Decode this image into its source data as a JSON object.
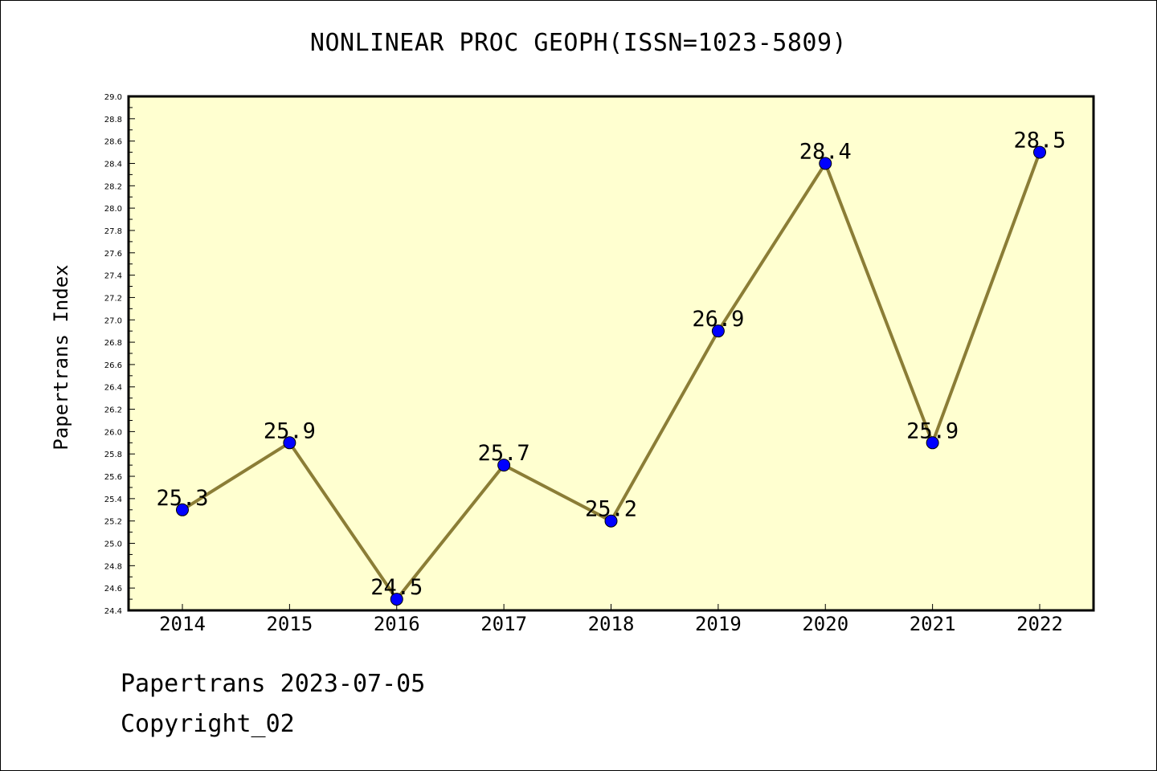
{
  "chart_data": {
    "type": "line",
    "title": "NONLINEAR PROC GEOPH(ISSN=1023-5809)",
    "xlabel": "",
    "ylabel": "Papertrans Index",
    "categories": [
      "2014",
      "2015",
      "2016",
      "2017",
      "2018",
      "2019",
      "2020",
      "2021",
      "2022"
    ],
    "series": [
      {
        "values": [
          25.3,
          25.9,
          24.5,
          25.7,
          25.2,
          26.9,
          28.4,
          25.9,
          28.5
        ]
      }
    ],
    "data_labels": [
      "25.3",
      "25.9",
      "24.5",
      "25.7",
      "25.2",
      "26.9",
      "28.4",
      "25.9",
      "28.5"
    ],
    "ylim": [
      24.4,
      29.0
    ],
    "y_ticks": [
      "24.4",
      "24.6",
      "24.8",
      "25.0",
      "25.2",
      "25.4",
      "25.6",
      "25.8",
      "26.0",
      "26.2",
      "26.4",
      "26.6",
      "26.8",
      "27.0",
      "27.2",
      "27.4",
      "27.6",
      "27.8",
      "28.0",
      "28.2",
      "28.4",
      "28.6",
      "28.8",
      "29.0"
    ],
    "grid": false,
    "legend": "none",
    "colors": {
      "plot_background": "#ffffd0",
      "line": "#8b7d36",
      "marker": "#0000ff",
      "axes": "#000000"
    }
  },
  "footer": {
    "line1": "Papertrans 2023-07-05",
    "line2": "Copyright_02"
  }
}
